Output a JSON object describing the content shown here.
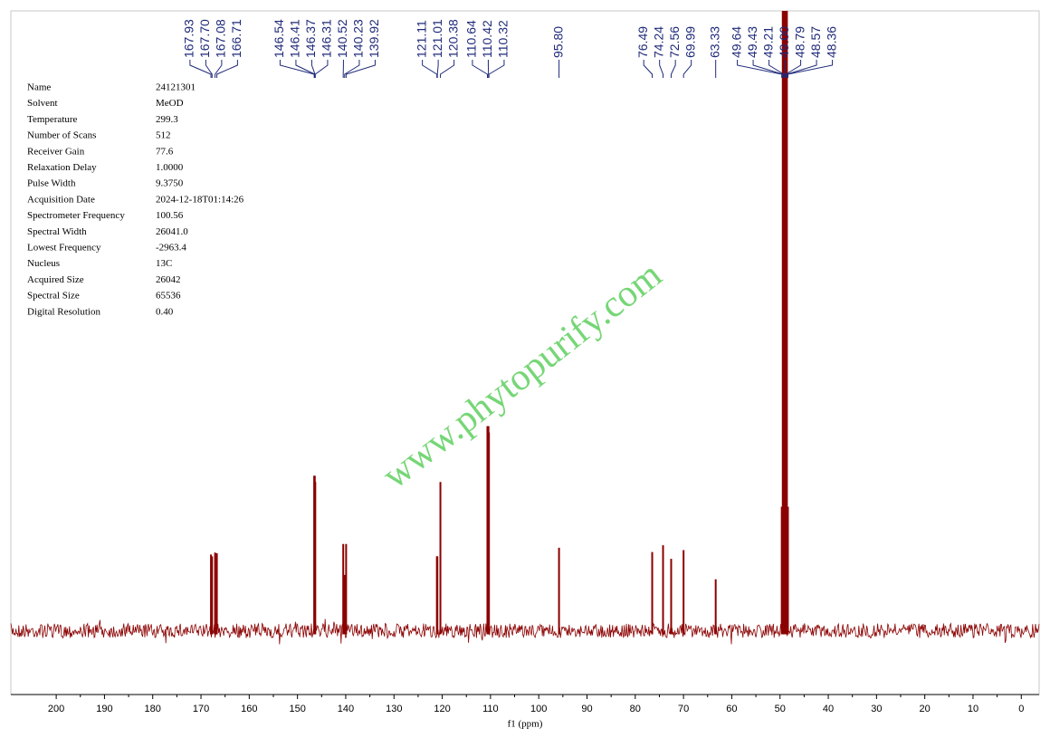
{
  "chart_data": {
    "type": "nmr",
    "x_label": "f1 (ppm)",
    "watermark": "www.phytopurify.com",
    "color": "#8b0000",
    "label_color": "#1f2a7a",
    "xlim": [
      209.4,
      -3.7
    ],
    "xticks": [
      200,
      190,
      180,
      170,
      160,
      150,
      140,
      130,
      120,
      110,
      100,
      90,
      80,
      70,
      60,
      50,
      40,
      30,
      20,
      10,
      0
    ],
    "ylim": [
      -10,
      100
    ],
    "x": [
      167.93,
      167.7,
      167.08,
      166.71,
      146.54,
      146.41,
      146.37,
      146.31,
      140.52,
      140.23,
      139.92,
      121.11,
      121.01,
      120.38,
      110.64,
      110.42,
      110.32,
      95.8,
      76.49,
      74.24,
      72.56,
      69.99,
      63.33,
      49.64,
      49.43,
      49.21,
      49.0,
      48.79,
      48.57,
      48.36
    ],
    "peak_labels": [
      "167.93",
      "167.70",
      "167.08",
      "166.71",
      "146.54",
      "146.41",
      "146.37",
      "146.31",
      "140.52",
      "140.23",
      "139.92",
      "121.11",
      "121.01",
      "120.38",
      "110.64",
      "110.42",
      "110.32",
      "95.80",
      "76.49",
      "74.24",
      "72.56",
      "69.99",
      "63.33",
      "49.64",
      "49.43",
      "49.21",
      "49.00",
      "48.79",
      "48.57",
      "48.36"
    ],
    "values": [
      12.3,
      12,
      12.6,
      12.5,
      25,
      25,
      24,
      24,
      14,
      9,
      14,
      12,
      12,
      24,
      33,
      33,
      32,
      13.4,
      12.7,
      13.8,
      11.6,
      13,
      8.3,
      20,
      100,
      100,
      100,
      100,
      100,
      20
    ],
    "parameters": [
      [
        "Name",
        "24121301"
      ],
      [
        "Solvent",
        "MeOD"
      ],
      [
        "Temperature",
        "299.3"
      ],
      [
        "Number of Scans",
        "512"
      ],
      [
        "Receiver Gain",
        "77.6"
      ],
      [
        "Relaxation Delay",
        "1.0000"
      ],
      [
        "Pulse Width",
        "9.3750"
      ],
      [
        "Acquisition Date",
        "2024-12-18T01:14:26"
      ],
      [
        "Spectrometer Frequency",
        "100.56"
      ],
      [
        "Spectral Width",
        "26041.0"
      ],
      [
        "Lowest Frequency",
        "-2963.4"
      ],
      [
        "Nucleus",
        "13C"
      ],
      [
        "Acquired Size",
        "26042"
      ],
      [
        "Spectral Size",
        "65536"
      ],
      [
        "Digital Resolution",
        "0.40"
      ]
    ]
  }
}
